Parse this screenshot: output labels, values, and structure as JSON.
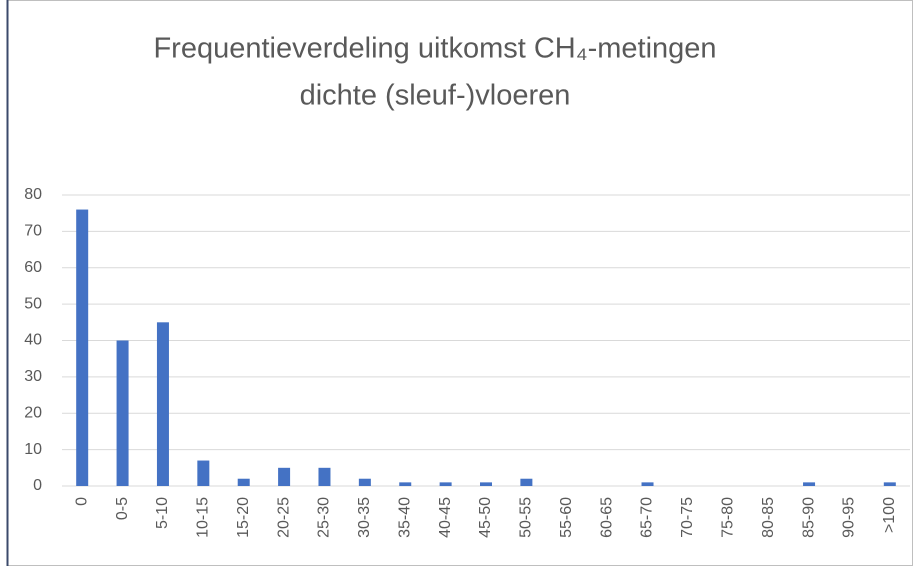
{
  "chart_data": {
    "type": "bar",
    "title": [
      "Frequentieverdeling uitkomst CH₄-metingen",
      "dichte (sleuf-)vloeren"
    ],
    "categories": [
      "0",
      "0-5",
      "5-10",
      "10-15",
      "15-20",
      "20-25",
      "25-30",
      "30-35",
      "35-40",
      "40-45",
      "45-50",
      "50-55",
      "55-60",
      "60-65",
      "65-70",
      "70-75",
      "75-80",
      "80-85",
      "85-90",
      "90-95",
      ">100"
    ],
    "values": [
      76,
      40,
      45,
      7,
      2,
      5,
      5,
      2,
      1,
      1,
      1,
      2,
      0,
      0,
      1,
      0,
      0,
      0,
      1,
      0,
      1
    ],
    "color": "#4472c4",
    "ylim": [
      0,
      80
    ],
    "yticks": [
      0,
      10,
      20,
      30,
      40,
      50,
      60,
      70,
      80
    ],
    "grid": true
  }
}
